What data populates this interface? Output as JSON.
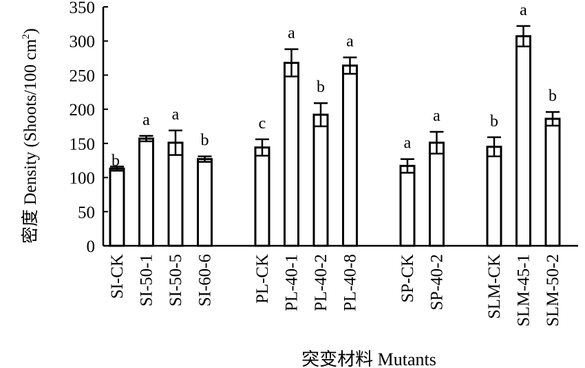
{
  "chart_data": {
    "type": "bar",
    "title": "",
    "xlabel": "突变材料 Mutants",
    "ylabel_main": "密度 Density (Shoots/100 cm",
    "ylabel_sup": "2",
    "ylabel_close": ")",
    "ylim": [
      0,
      350
    ],
    "yticks": [
      0,
      50,
      100,
      150,
      200,
      250,
      300,
      350
    ],
    "grid": false,
    "legend": "none",
    "groups": [
      "SI",
      "PL",
      "SP",
      "SLM"
    ],
    "bars": [
      {
        "category": "SI-CK",
        "group": "SI",
        "value": 113,
        "error": 3,
        "letter": "b"
      },
      {
        "category": "SI-50-1",
        "group": "SI",
        "value": 157,
        "error": 4,
        "letter": "a"
      },
      {
        "category": "SI-50-5",
        "group": "SI",
        "value": 151,
        "error": 18,
        "letter": "a"
      },
      {
        "category": "SI-60-6",
        "group": "SI",
        "value": 127,
        "error": 4,
        "letter": "b"
      },
      {
        "category": "PL-CK",
        "group": "PL",
        "value": 144,
        "error": 12,
        "letter": "c"
      },
      {
        "category": "PL-40-1",
        "group": "PL",
        "value": 268,
        "error": 20,
        "letter": "a"
      },
      {
        "category": "PL-40-2",
        "group": "PL",
        "value": 192,
        "error": 17,
        "letter": "b"
      },
      {
        "category": "PL-40-8",
        "group": "PL",
        "value": 264,
        "error": 12,
        "letter": "a"
      },
      {
        "category": "SP-CK",
        "group": "SP",
        "value": 117,
        "error": 10,
        "letter": "a"
      },
      {
        "category": "SP-40-2",
        "group": "SP",
        "value": 151,
        "error": 16,
        "letter": "a"
      },
      {
        "category": "SLM-CK",
        "group": "SLM",
        "value": 145,
        "error": 14,
        "letter": "b"
      },
      {
        "category": "SLM-45-1",
        "group": "SLM",
        "value": 307,
        "error": 15,
        "letter": "a"
      },
      {
        "category": "SLM-50-2",
        "group": "SLM",
        "value": 186,
        "error": 10,
        "letter": "b"
      }
    ],
    "bar_fill": "#ffffff",
    "bar_stroke": "#000000"
  }
}
